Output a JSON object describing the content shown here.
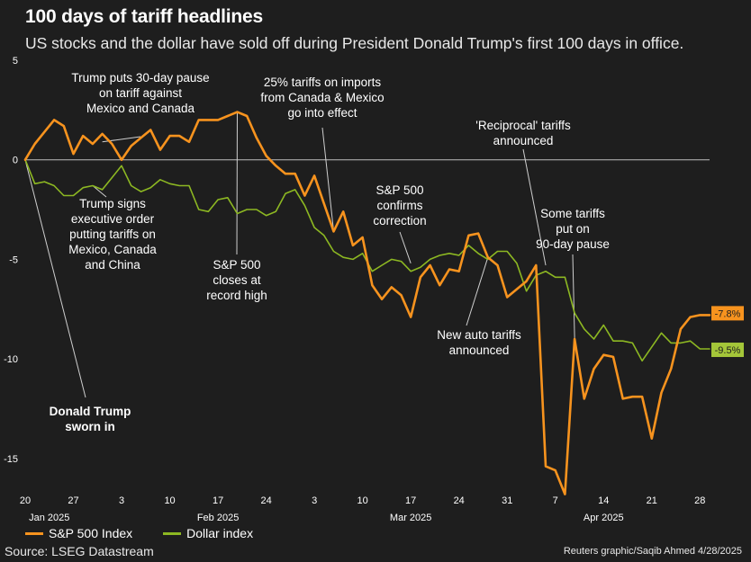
{
  "header": {
    "title": "100 days of tariff headlines",
    "subtitle": "US stocks and the dollar have sold off during President Donald Trump's first 100 days in office."
  },
  "footer": {
    "source": "Source: LSEG Datastream",
    "credit": "Reuters graphic/Saqib Ahmed 4/28/2025"
  },
  "colors": {
    "sp500": "#f7931e",
    "dollar": "#8db822",
    "background": "#1e1e1e",
    "zero_line": "#bdbdbd",
    "sp500_badge": "#f7931e",
    "dollar_badge": "#a4c639"
  },
  "chart_data": {
    "type": "line",
    "title": "100 days of tariff headlines",
    "xlabel": "",
    "ylabel": "",
    "ylim": [
      -16.5,
      5
    ],
    "yticks": [
      5,
      0,
      -5,
      -10,
      -15
    ],
    "x_ticks": [
      {
        "index": 0,
        "label": "20"
      },
      {
        "index": 5,
        "label": "27"
      },
      {
        "index": 10,
        "label": "3"
      },
      {
        "index": 15,
        "label": "10"
      },
      {
        "index": 20,
        "label": "17"
      },
      {
        "index": 25,
        "label": "24"
      },
      {
        "index": 30,
        "label": "3"
      },
      {
        "index": 35,
        "label": "10"
      },
      {
        "index": 40,
        "label": "17"
      },
      {
        "index": 45,
        "label": "24"
      },
      {
        "index": 50,
        "label": "31"
      },
      {
        "index": 55,
        "label": "7"
      },
      {
        "index": 60,
        "label": "14"
      },
      {
        "index": 65,
        "label": "21"
      },
      {
        "index": 70,
        "label": "28"
      }
    ],
    "months": [
      {
        "index": 2.5,
        "label": "Jan 2025"
      },
      {
        "index": 20,
        "label": "Feb 2025"
      },
      {
        "index": 40,
        "label": "Mar 2025"
      },
      {
        "index": 60,
        "label": "Apr 2025"
      }
    ],
    "series": [
      {
        "name": "S&P 500 Index",
        "color": "#f7931e",
        "end_label": "-7.8%",
        "values": [
          0,
          0.8,
          1.4,
          2.0,
          1.7,
          0.3,
          1.2,
          0.8,
          1.3,
          0.8,
          0,
          0.7,
          1.1,
          1.5,
          0.5,
          1.2,
          1.2,
          0.9,
          2.0,
          2.0,
          2.0,
          2.2,
          2.4,
          2.2,
          1.1,
          0.2,
          -0.3,
          -0.7,
          -0.7,
          -1.8,
          -0.8,
          -2.2,
          -3.6,
          -2.6,
          -4.3,
          -3.9,
          -6.3,
          -7.0,
          -6.4,
          -6.8,
          -7.9,
          -5.9,
          -5.3,
          -6.3,
          -5.5,
          -5.6,
          -3.8,
          -3.7,
          -4.9,
          -5.3,
          -6.9,
          -6.5,
          -6.1,
          -5.3,
          -15.4,
          -15.6,
          -16.8,
          -9.0,
          -12.0,
          -10.5,
          -9.8,
          -9.9,
          -12.0,
          -11.9,
          -11.9,
          -14.0,
          -11.7,
          -10.5,
          -8.5,
          -7.9,
          -7.8,
          -7.8
        ]
      },
      {
        "name": "Dollar index",
        "color": "#8db822",
        "end_label": "-9.5%",
        "values": [
          0,
          -1.2,
          -1.1,
          -1.3,
          -1.8,
          -1.8,
          -1.4,
          -1.3,
          -1.5,
          -0.9,
          -0.3,
          -1.3,
          -1.6,
          -1.4,
          -1.0,
          -1.2,
          -1.3,
          -1.3,
          -2.5,
          -2.6,
          -2.0,
          -1.9,
          -2.7,
          -2.5,
          -2.5,
          -2.8,
          -2.6,
          -1.7,
          -1.5,
          -2.3,
          -3.4,
          -3.8,
          -4.6,
          -4.9,
          -5.0,
          -4.7,
          -5.6,
          -5.3,
          -5.0,
          -5.1,
          -5.6,
          -5.4,
          -5.0,
          -4.8,
          -4.7,
          -4.8,
          -4.3,
          -4.7,
          -5.0,
          -4.6,
          -4.6,
          -5.2,
          -6.6,
          -5.8,
          -5.6,
          -5.9,
          -5.9,
          -7.7,
          -8.5,
          -9.0,
          -8.3,
          -9.1,
          -9.1,
          -9.2,
          -10.1,
          -9.4,
          -8.7,
          -9.2,
          -9.2,
          -9.1,
          -9.5,
          -9.5
        ]
      }
    ],
    "annotations": [
      {
        "id": "trump-sworn-in",
        "lines": [
          "Donald Trump",
          "sworn in"
        ],
        "bold": true,
        "index": 0,
        "value": 0
      },
      {
        "id": "tariff-pause",
        "lines": [
          "Trump puts 30-day pause",
          "on tariff against",
          "Mexico and Canada"
        ],
        "bold": false,
        "index": 8,
        "value": 0.9
      },
      {
        "id": "executive-order",
        "lines": [
          "Trump signs",
          "executive order",
          "putting tariffs on",
          "Mexico, Canada",
          "and China"
        ],
        "bold": false,
        "index": 7,
        "value": -1.3
      },
      {
        "id": "record-high",
        "lines": [
          "S&P 500",
          "closes at",
          "record high"
        ],
        "bold": false,
        "index": 22,
        "value": 2.4
      },
      {
        "id": "tariffs-effect",
        "lines": [
          "25% tariffs on imports",
          "from Canada & Mexico",
          "go into effect"
        ],
        "bold": false,
        "index": 32,
        "value": -3.6
      },
      {
        "id": "correction",
        "lines": [
          "S&P 500",
          "confirms",
          "correction"
        ],
        "bold": false,
        "index": 40,
        "value": -5.2
      },
      {
        "id": "auto-tariffs",
        "lines": [
          "New auto tariffs",
          "announced"
        ],
        "bold": false,
        "index": 48,
        "value": -4.9
      },
      {
        "id": "reciprocal",
        "lines": [
          "'Reciprocal' tariffs",
          "announced"
        ],
        "bold": false,
        "index": 54,
        "value": -5.3
      },
      {
        "id": "ninety-day-pause",
        "lines": [
          "Some tariffs",
          "put on",
          "90-day pause"
        ],
        "bold": false,
        "index": 57,
        "value": -9.0
      }
    ]
  }
}
